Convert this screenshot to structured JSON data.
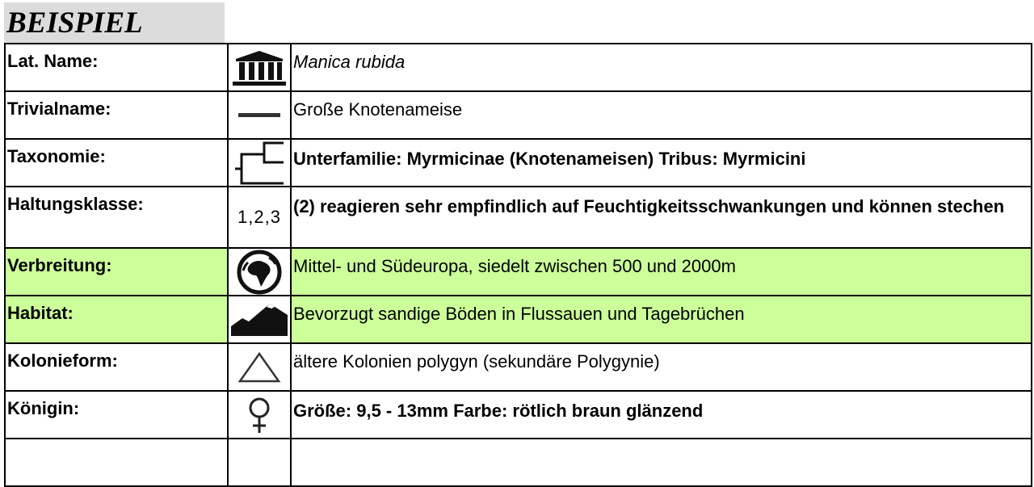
{
  "title": "BEISPIEL",
  "accent_green": "#ccff99",
  "rows": [
    {
      "label": "Lat. Name:",
      "icon": "museum-icon",
      "value": "Manica rubida"
    },
    {
      "label": "Trivialname:",
      "icon": "dash-icon",
      "value": "Große Knotenameise"
    },
    {
      "label": "Taxonomie:",
      "icon": "tree-bracket-icon",
      "value": "Unterfamilie: Myrmicinae (Knotenameisen) Tribus: Myrmicini"
    },
    {
      "label": "Haltungsklasse:",
      "icon_text": "1,2,3",
      "value": "(2) reagieren sehr empfindlich auf Feuchtigkeitsschwankungen und können stechen"
    },
    {
      "label": "Verbreitung:",
      "icon": "globe-icon",
      "value": "Mittel- und Südeuropa, siedelt zwischen 500 und 2000m"
    },
    {
      "label": "Habitat:",
      "icon": "mountain-icon",
      "value": "Bevorzugt sandige Böden in Flussauen und Tagebrüchen"
    },
    {
      "label": "Kolonieform:",
      "icon": "triangle-icon",
      "value": "ältere Kolonien polygyn (sekundäre Polygynie)"
    },
    {
      "label": "Königin:",
      "icon": "female-icon",
      "value": "Größe: 9,5 - 13mm Farbe: rötlich braun glänzend"
    }
  ]
}
